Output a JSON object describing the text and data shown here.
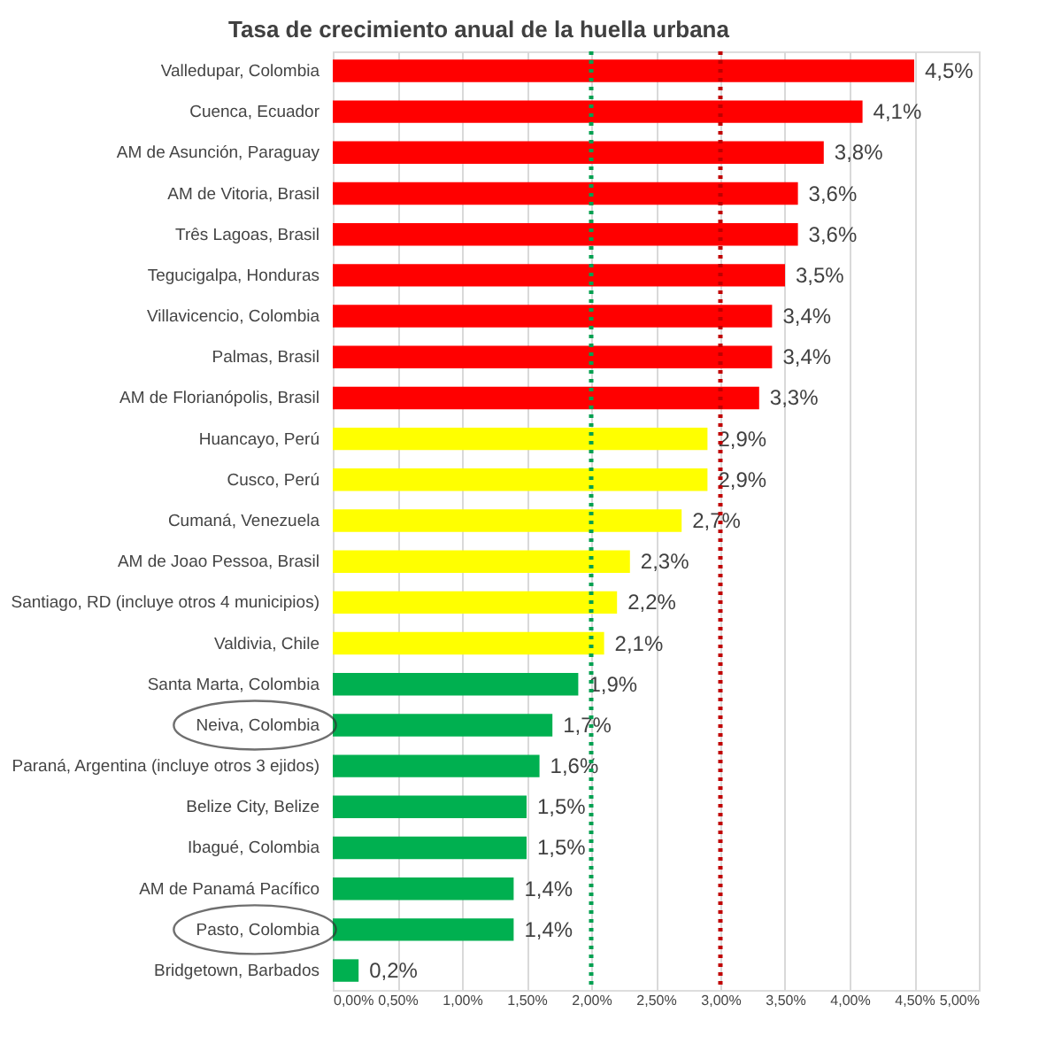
{
  "chart_data": {
    "type": "bar",
    "orientation": "horizontal",
    "title": "Tasa de crecimiento anual de la huella urbana",
    "categories": [
      "Valledupar, Colombia",
      "Cuenca, Ecuador",
      "AM de Asunción, Paraguay",
      "AM de Vitoria, Brasil",
      "Três Lagoas, Brasil",
      "Tegucigalpa, Honduras",
      "Villavicencio, Colombia",
      "Palmas, Brasil",
      "AM de Florianópolis, Brasil",
      "Huancayo, Perú",
      "Cusco, Perú",
      "Cumaná, Venezuela",
      "AM de Joao Pessoa, Brasil",
      "Santiago, RD (incluye otros 4 municipios)",
      "Valdivia, Chile",
      "Santa Marta, Colombia",
      "Neiva, Colombia",
      "Paraná, Argentina (incluye otros 3 ejidos)",
      "Belize City, Belize",
      "Ibagué, Colombia",
      "AM de Panamá Pacífico",
      "Pasto, Colombia",
      "Bridgetown, Barbados"
    ],
    "values": [
      4.5,
      4.1,
      3.8,
      3.6,
      3.6,
      3.5,
      3.4,
      3.4,
      3.3,
      2.9,
      2.9,
      2.7,
      2.3,
      2.2,
      2.1,
      1.9,
      1.7,
      1.6,
      1.5,
      1.5,
      1.4,
      1.4,
      0.2
    ],
    "value_labels": [
      "4,5%",
      "4,1%",
      "3,8%",
      "3,6%",
      "3,6%",
      "3,5%",
      "3,4%",
      "3,4%",
      "3,3%",
      "2,9%",
      "2,9%",
      "2,7%",
      "2,3%",
      "2,2%",
      "2,1%",
      "1,9%",
      "1,7%",
      "1,6%",
      "1,5%",
      "1,5%",
      "1,4%",
      "1,4%",
      "0,2%"
    ],
    "colors": [
      "#ff0000",
      "#ff0000",
      "#ff0000",
      "#ff0000",
      "#ff0000",
      "#ff0000",
      "#ff0000",
      "#ff0000",
      "#ff0000",
      "#ffff00",
      "#ffff00",
      "#ffff00",
      "#ffff00",
      "#ffff00",
      "#ffff00",
      "#00b050",
      "#00b050",
      "#00b050",
      "#00b050",
      "#00b050",
      "#00b050",
      "#00b050",
      "#00b050"
    ],
    "xlim": [
      0,
      5
    ],
    "xticks": [
      {
        "value": 0,
        "label": "0,00%"
      },
      {
        "value": 0.5,
        "label": "0,50%"
      },
      {
        "value": 1,
        "label": "1,00%"
      },
      {
        "value": 1.5,
        "label": "1,50%"
      },
      {
        "value": 2,
        "label": "2,00%"
      },
      {
        "value": 2.5,
        "label": "2,50%"
      },
      {
        "value": 3,
        "label": "3,00%"
      },
      {
        "value": 3.5,
        "label": "3,50%"
      },
      {
        "value": 4,
        "label": "4,00%"
      },
      {
        "value": 4.5,
        "label": "4,50%"
      },
      {
        "value": 5,
        "label": "5,00%"
      }
    ],
    "ref_lines": [
      {
        "axis": "x",
        "value": 2,
        "color": "#00a050",
        "line_style": "dotted"
      },
      {
        "axis": "x",
        "value": 3,
        "color": "#c00000",
        "line_style": "dotted"
      }
    ],
    "grid": "x"
  }
}
